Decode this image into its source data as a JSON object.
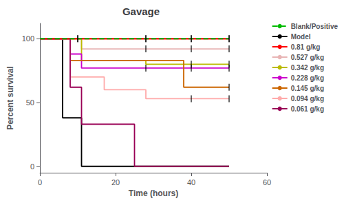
{
  "chart_data": {
    "type": "line",
    "title": "Gavage",
    "xlabel": "Time (hours)",
    "ylabel": "Percent survival",
    "xlim": [
      0,
      60
    ],
    "ylim": [
      -5,
      112
    ],
    "xticks": [
      0,
      20,
      40,
      60
    ],
    "yticks": [
      0,
      50,
      100
    ],
    "grid": false,
    "legend": "right",
    "series": [
      {
        "name": "Blank/Positive",
        "color": "#00bb00",
        "line_style": "dashed",
        "values": [
          [
            0,
            100
          ],
          [
            50,
            100
          ]
        ],
        "underlay": {
          "color": "#ff0000",
          "line_style": "solid",
          "values": [
            [
              0,
              100
            ],
            [
              50,
              100
            ]
          ]
        },
        "censored": {
          "color": "#000000",
          "marker": "|",
          "values": [
            [
              10,
              100
            ],
            [
              28,
              100
            ],
            [
              40,
              100
            ],
            [
              50,
              100
            ]
          ]
        }
      },
      {
        "name": "Model",
        "color": "#000000",
        "line_style": "solid",
        "values": [
          [
            0,
            100
          ],
          [
            6,
            100
          ],
          [
            6,
            38
          ],
          [
            11,
            38
          ],
          [
            11,
            0
          ],
          [
            50,
            0
          ]
        ],
        "censored": {
          "color": "#000000",
          "marker": "|",
          "values": []
        }
      },
      {
        "name": "0.81 g/kg",
        "color": "#ff0000",
        "line_style": "solid",
        "values": [
          [
            0,
            100
          ],
          [
            50,
            100
          ]
        ],
        "censored": {
          "color": "#000000",
          "marker": "|",
          "values": [
            [
              10,
              100
            ],
            [
              28,
              100
            ],
            [
              40,
              100
            ],
            [
              50,
              100
            ]
          ]
        }
      },
      {
        "name": "0.527 g/kg",
        "color": "#e8b4b4",
        "line_style": "solid",
        "values": [
          [
            0,
            100
          ],
          [
            11,
            100
          ],
          [
            11,
            92
          ],
          [
            50,
            92
          ]
        ],
        "censored": {
          "color": "#000000",
          "marker": "|",
          "values": [
            [
              28,
              92
            ],
            [
              40,
              92
            ],
            [
              50,
              92
            ]
          ]
        }
      },
      {
        "name": "0.342 g/kg",
        "color": "#bbbb00",
        "line_style": "solid",
        "values": [
          [
            0,
            100
          ],
          [
            11,
            100
          ],
          [
            11,
            83
          ],
          [
            28,
            83
          ],
          [
            28,
            80
          ],
          [
            50,
            80
          ]
        ],
        "censored": {
          "color": "#000000",
          "marker": "|",
          "values": [
            [
              40,
              80
            ],
            [
              50,
              80
            ]
          ]
        }
      },
      {
        "name": "0.228 g/kg",
        "color": "#cc00cc",
        "line_style": "solid",
        "values": [
          [
            0,
            100
          ],
          [
            8,
            100
          ],
          [
            8,
            88
          ],
          [
            11,
            88
          ],
          [
            11,
            77
          ],
          [
            50,
            77
          ]
        ],
        "censored": {
          "color": "#000000",
          "marker": "|",
          "values": [
            [
              28,
              77
            ],
            [
              40,
              77
            ],
            [
              50,
              77
            ]
          ]
        }
      },
      {
        "name": "0.145 g/kg",
        "color": "#cc6600",
        "line_style": "solid",
        "values": [
          [
            0,
            100
          ],
          [
            8,
            100
          ],
          [
            8,
            83
          ],
          [
            38,
            83
          ],
          [
            38,
            62
          ],
          [
            50,
            62
          ]
        ],
        "censored": {
          "color": "#000000",
          "marker": "|",
          "values": [
            [
              50,
              62
            ]
          ]
        }
      },
      {
        "name": "0.094 g/kg",
        "color": "#ffaaaa",
        "line_style": "solid",
        "values": [
          [
            0,
            100
          ],
          [
            8,
            100
          ],
          [
            8,
            70
          ],
          [
            17,
            70
          ],
          [
            17,
            60
          ],
          [
            28,
            60
          ],
          [
            28,
            53
          ],
          [
            50,
            53
          ]
        ],
        "censored": {
          "color": "#000000",
          "marker": "|",
          "values": [
            [
              40,
              53
            ],
            [
              50,
              53
            ]
          ]
        }
      },
      {
        "name": "0.061 g/kg",
        "color": "#990055",
        "line_style": "solid",
        "values": [
          [
            0,
            100
          ],
          [
            8,
            100
          ],
          [
            8,
            62
          ],
          [
            11,
            62
          ],
          [
            11,
            33
          ],
          [
            25,
            33
          ],
          [
            25,
            0
          ],
          [
            50,
            0
          ]
        ],
        "censored": {
          "color": "#000000",
          "marker": "|",
          "values": []
        }
      }
    ]
  }
}
